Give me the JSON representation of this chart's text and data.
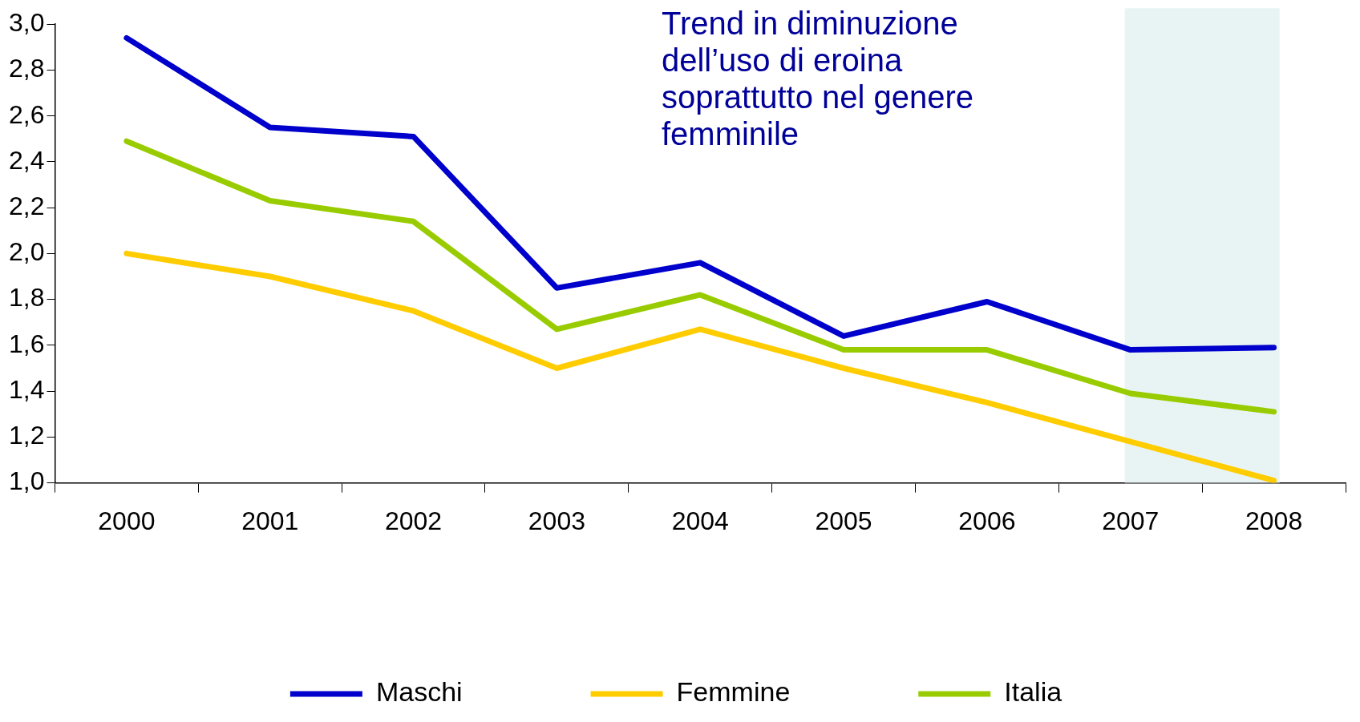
{
  "chart_data": {
    "type": "line",
    "categories": [
      "2000",
      "2001",
      "2002",
      "2003",
      "2004",
      "2005",
      "2006",
      "2007",
      "2008"
    ],
    "series": [
      {
        "name": "Maschi",
        "color": "#0000cc",
        "values": [
          2.94,
          2.55,
          2.51,
          1.85,
          1.96,
          1.64,
          1.79,
          1.58,
          1.59
        ]
      },
      {
        "name": "Femmine",
        "color": "#ffcc00",
        "values": [
          2.0,
          1.9,
          1.75,
          1.5,
          1.67,
          1.5,
          1.35,
          1.18,
          1.01
        ]
      },
      {
        "name": "Italia",
        "color": "#99cc00",
        "values": [
          2.49,
          2.23,
          2.14,
          1.67,
          1.82,
          1.58,
          1.58,
          1.39,
          1.31
        ]
      }
    ],
    "ylim": [
      1.0,
      3.0
    ],
    "yticks": [
      {
        "value": 1.0,
        "label": "1,0"
      },
      {
        "value": 1.2,
        "label": "1,2"
      },
      {
        "value": 1.4,
        "label": "1,4"
      },
      {
        "value": 1.6,
        "label": "1,6"
      },
      {
        "value": 1.8,
        "label": "1,8"
      },
      {
        "value": 2.0,
        "label": "2,0"
      },
      {
        "value": 2.2,
        "label": "2,2"
      },
      {
        "value": 2.4,
        "label": "2,4"
      },
      {
        "value": 2.6,
        "label": "2,6"
      },
      {
        "value": 2.8,
        "label": "2,8"
      },
      {
        "value": 3.0,
        "label": "3,0"
      }
    ],
    "bands": [
      {
        "axis": "x",
        "from": "2007",
        "to": "2008",
        "color": "#e8f4f4"
      }
    ],
    "annotations": [
      "Trend in diminuzione dell’uso di eroina soprattutto nel genere femminile"
    ],
    "grid": false,
    "legend": "bottom",
    "marker": "none",
    "line_style": "solid"
  }
}
